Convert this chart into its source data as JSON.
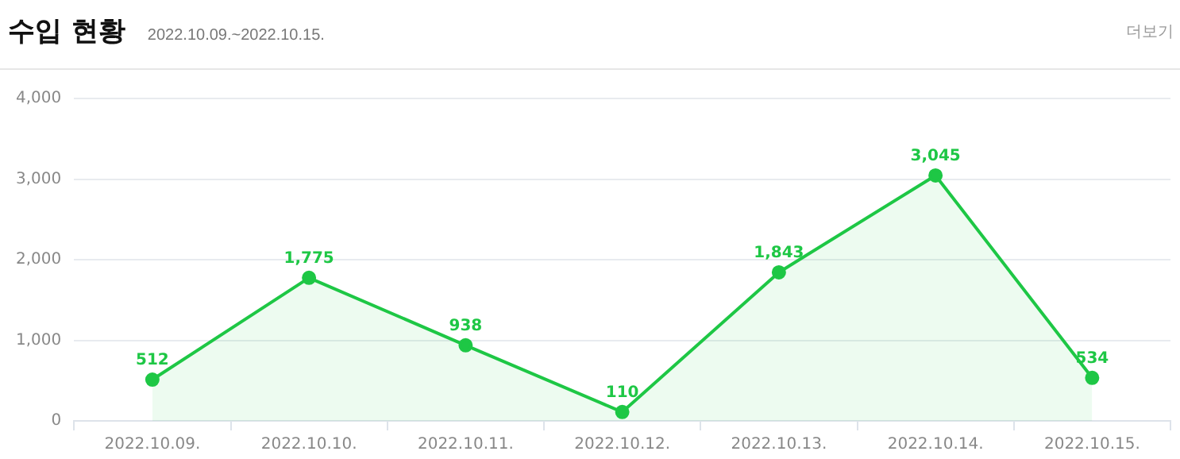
{
  "chart_data": {
    "type": "area",
    "title": "수입 현황",
    "subtitle": "2022.10.09.~2022.10.15.",
    "annotations": [
      "더보기"
    ],
    "categories": [
      "2022.10.09.",
      "2022.10.10.",
      "2022.10.11.",
      "2022.10.12.",
      "2022.10.13.",
      "2022.10.14.",
      "2022.10.15."
    ],
    "series": [
      {
        "color": "#1ec745",
        "values": [
          512,
          1775,
          938,
          110,
          1843,
          3045,
          534
        ],
        "value_labels": [
          "512",
          "1,775",
          "938",
          "110",
          "1,843",
          "3,045",
          "534"
        ]
      }
    ],
    "ylim": [
      0,
      4000
    ],
    "yticks": [
      0,
      {
        "value": 1000,
        "label": "1,000"
      },
      {
        "value": 2000,
        "label": "2,000"
      },
      {
        "value": 3000,
        "label": "3,000"
      },
      {
        "value": 4000,
        "label": "4,000"
      }
    ],
    "grid": "y",
    "legend": false,
    "marker": "circle",
    "line_style": "solid"
  }
}
